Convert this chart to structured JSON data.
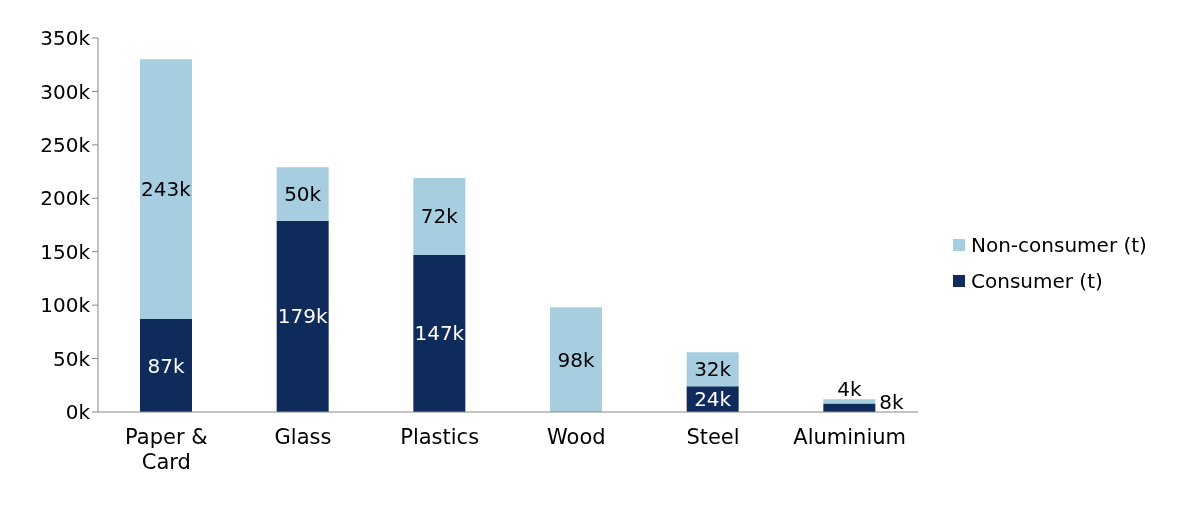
{
  "chart_data": {
    "type": "bar",
    "stacked": true,
    "categories": [
      "Paper & Card",
      "Glass",
      "Plastics",
      "Wood",
      "Steel",
      "Aluminium"
    ],
    "series": [
      {
        "name": "Consumer (t)",
        "color": "#0f2b5b",
        "values": [
          87000,
          179000,
          147000,
          null,
          24000,
          8000
        ],
        "value_labels": [
          "87k",
          "179k",
          "147k",
          null,
          "24k",
          "8k"
        ]
      },
      {
        "name": "Non-consumer (t)",
        "color": "#a6cde0",
        "values": [
          243000,
          50000,
          72000,
          98000,
          32000,
          4000
        ],
        "value_labels": [
          "243k",
          "50k",
          "72k",
          "98k",
          "32k",
          "4k"
        ]
      }
    ],
    "ylim": [
      0,
      350000
    ],
    "yticks": [
      {
        "value": 0,
        "label": "0k"
      },
      {
        "value": 50000,
        "label": "50k"
      },
      {
        "value": 100000,
        "label": "100k"
      },
      {
        "value": 150000,
        "label": "150k"
      },
      {
        "value": 200000,
        "label": "200k"
      },
      {
        "value": 250000,
        "label": "250k"
      },
      {
        "value": 300000,
        "label": "300k"
      },
      {
        "value": 350000,
        "label": "350k"
      }
    ],
    "grid": false,
    "legend": "right"
  }
}
